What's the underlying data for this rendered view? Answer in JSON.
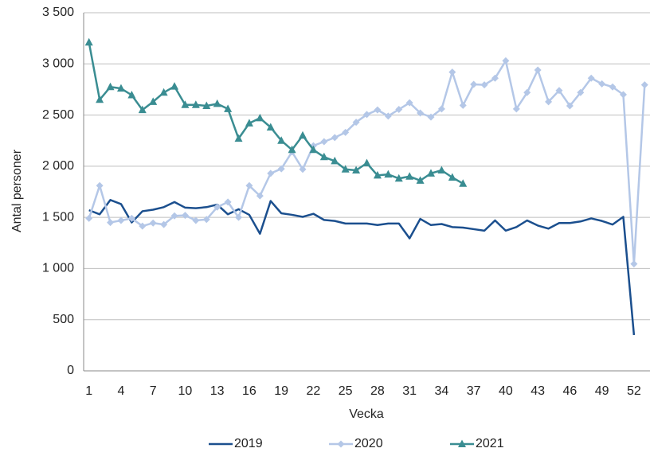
{
  "chart_data": {
    "type": "line",
    "x_label": "Vecka",
    "y_label": "Antal personer",
    "categories": [
      1,
      null,
      null,
      4,
      null,
      null,
      7,
      null,
      null,
      10,
      null,
      null,
      13,
      null,
      null,
      16,
      null,
      null,
      19,
      null,
      null,
      22,
      null,
      null,
      25,
      null,
      null,
      28,
      null,
      null,
      31,
      null,
      null,
      34,
      null,
      null,
      37,
      null,
      null,
      40,
      null,
      null,
      43,
      null,
      null,
      46,
      null,
      null,
      49,
      null,
      null,
      52,
      null
    ],
    "ylim": [
      0,
      3500
    ],
    "yticks": [
      0,
      500,
      {
        "value": 1000,
        "label": "1 000"
      },
      {
        "value": 1500,
        "label": "1 500"
      },
      {
        "value": 2000,
        "label": "2 000"
      },
      {
        "value": 2500,
        "label": "2 500"
      },
      {
        "value": 3000,
        "label": "3 000"
      },
      {
        "value": 3500,
        "label": "3 500"
      }
    ],
    "grid": true,
    "legend": "bottom",
    "series": [
      {
        "name": "2019",
        "color": "#1b4f8e",
        "marker": "none",
        "values": [
          1570,
          1530,
          1670,
          1630,
          1450,
          1560,
          1575,
          1600,
          1650,
          1595,
          1590,
          1600,
          1625,
          1530,
          1580,
          1525,
          1340,
          1660,
          1540,
          1525,
          1505,
          1535,
          1475,
          1465,
          1440,
          1440,
          1440,
          1425,
          1440,
          1440,
          1295,
          1485,
          1425,
          1435,
          1405,
          1400,
          1385,
          1370,
          1470,
          1370,
          1405,
          1470,
          1420,
          1390,
          1445,
          1445,
          1460,
          1490,
          1465,
          1430,
          1505,
          350,
          null
        ]
      },
      {
        "name": "2020",
        "color": "#b4c7e7",
        "marker": "diamond",
        "values": [
          1490,
          1810,
          1450,
          1470,
          1490,
          1415,
          1445,
          1430,
          1515,
          1520,
          1470,
          1480,
          1600,
          1650,
          1500,
          1810,
          1710,
          1930,
          1975,
          2140,
          1970,
          2200,
          2240,
          2280,
          2330,
          2430,
          2505,
          2550,
          2490,
          2555,
          2620,
          2520,
          2480,
          2560,
          2920,
          2595,
          2800,
          2795,
          2860,
          3030,
          2560,
          2720,
          2940,
          2630,
          2740,
          2590,
          2720,
          2860,
          2805,
          2775,
          2700,
          1045,
          2795
        ]
      },
      {
        "name": "2021",
        "color": "#3a8d92",
        "marker": "triangle",
        "values": [
          3210,
          2650,
          2775,
          2760,
          2695,
          2550,
          2630,
          2720,
          2780,
          2600,
          2600,
          2590,
          2610,
          2560,
          2270,
          2420,
          2470,
          2380,
          2250,
          2160,
          2300,
          2160,
          2090,
          2050,
          1970,
          1960,
          2030,
          1910,
          1920,
          1880,
          1900,
          1860,
          1930,
          1960,
          1890,
          1830,
          null,
          null,
          null,
          null,
          null,
          null,
          null,
          null,
          null,
          null,
          null,
          null,
          null,
          null,
          null,
          null,
          null
        ]
      }
    ]
  }
}
